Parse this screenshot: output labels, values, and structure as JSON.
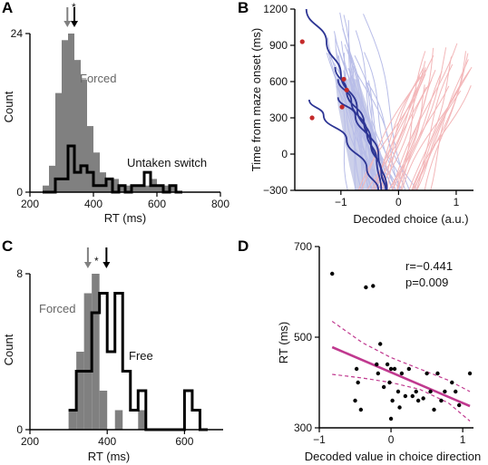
{
  "panels": {
    "A": {
      "letter": "A"
    },
    "B": {
      "letter": "B"
    },
    "C": {
      "letter": "C"
    },
    "D": {
      "letter": "D"
    }
  },
  "colors": {
    "forced_fill": "#808080",
    "switch_line": "#000000",
    "blue_traj": "#b8bde8",
    "pink_traj": "#f3b7b9",
    "dark_traj": "#2d3594",
    "marker": "#c42a2a",
    "band_fill": "#aab0dc",
    "fit_line": "#c0398f"
  },
  "chart_data": [
    {
      "id": "A",
      "type": "bar",
      "xlabel": "RT (ms)",
      "ylabel": "Count",
      "xlim": [
        200,
        800
      ],
      "ylim": [
        0,
        24
      ],
      "xticks": [
        "200",
        "400",
        "600",
        "800"
      ],
      "yticks": [
        "0",
        "24"
      ],
      "bin_width": 20,
      "arrow_marker": "*",
      "arrows": {
        "forced": 318,
        "switch": 340
      },
      "series": [
        {
          "name": "Forced",
          "kind": "filled",
          "bins": [
            240,
            260,
            280,
            300,
            320,
            340,
            360,
            380,
            400,
            420,
            440,
            460,
            480,
            500,
            520,
            540,
            560,
            580,
            600,
            620,
            640
          ],
          "counts": [
            1,
            4,
            15,
            23,
            24,
            20,
            17,
            10,
            6,
            3,
            2,
            2,
            1,
            1,
            1,
            1,
            1,
            2,
            1,
            1,
            1
          ]
        },
        {
          "name": "Untaken switch",
          "kind": "outline",
          "bins": [
            240,
            260,
            280,
            300,
            320,
            340,
            360,
            380,
            400,
            420,
            440,
            460,
            480,
            500,
            520,
            540,
            560,
            580,
            600,
            620,
            640,
            660
          ],
          "counts": [
            0,
            0,
            2,
            2,
            7,
            3,
            4,
            3,
            1,
            1,
            2,
            0,
            1,
            0,
            1,
            1,
            3,
            1,
            1,
            0,
            1,
            0
          ]
        }
      ]
    },
    {
      "id": "B",
      "type": "line",
      "xlabel": "Decoded choice (a.u.)",
      "ylabel": "Time from maze onset (ms)",
      "xlim": [
        -1.8,
        1.3
      ],
      "ylim": [
        -300,
        1200
      ],
      "xticks": [
        "−1",
        "0",
        "1"
      ],
      "yticks": [
        "−300",
        "0",
        "300",
        "600",
        "900",
        "1200"
      ],
      "highlighted_switch_trajectories": [
        {
          "points": [
            [
              -1.6,
              1200
            ],
            [
              -1.25,
              930
            ],
            [
              -1.0,
              660
            ],
            [
              -0.72,
              380
            ],
            [
              -0.48,
              110
            ],
            [
              -0.3,
              -160
            ],
            [
              -0.22,
              -300
            ]
          ],
          "marker": [
            -1.67,
            930
          ]
        },
        {
          "points": [
            [
              -1.1,
              720
            ],
            [
              -0.9,
              520
            ],
            [
              -0.6,
              260
            ],
            [
              -0.35,
              0
            ],
            [
              -0.2,
              -300
            ]
          ],
          "marker": [
            -0.95,
            620
          ]
        },
        {
          "points": [
            [
              -1.05,
              620
            ],
            [
              -0.82,
              440
            ],
            [
              -0.55,
              180
            ],
            [
              -0.38,
              -50
            ],
            [
              -0.3,
              -300
            ]
          ],
          "marker": [
            -0.9,
            530
          ]
        },
        {
          "points": [
            [
              -1.05,
              470
            ],
            [
              -0.75,
              320
            ],
            [
              -0.48,
              80
            ],
            [
              -0.3,
              -140
            ],
            [
              -0.22,
              -300
            ]
          ],
          "marker": [
            -0.98,
            390
          ]
        },
        {
          "points": [
            [
              -1.55,
              450
            ],
            [
              -1.3,
              320
            ],
            [
              -0.9,
              120
            ],
            [
              -0.55,
              -120
            ],
            [
              -0.35,
              -300
            ]
          ],
          "marker": [
            -1.5,
            300
          ]
        }
      ]
    },
    {
      "id": "C",
      "type": "bar",
      "xlabel": "RT (ms)",
      "ylabel": "Count",
      "xlim": [
        200,
        700
      ],
      "ylim": [
        0,
        8
      ],
      "xticks": [
        "200",
        "400",
        "600"
      ],
      "yticks": [
        "0",
        "8"
      ],
      "bin_width": 20,
      "arrow_marker": "*",
      "arrows": {
        "forced": 350,
        "free": 398
      },
      "series": [
        {
          "name": "Forced",
          "kind": "filled",
          "bins": [
            300,
            320,
            340,
            360,
            380,
            400,
            420,
            440,
            460,
            480,
            500
          ],
          "counts": [
            1,
            4,
            7,
            8,
            2,
            0,
            1,
            0,
            0,
            1,
            0
          ]
        },
        {
          "name": "Free",
          "kind": "outline",
          "bins": [
            300,
            320,
            340,
            360,
            380,
            400,
            420,
            440,
            460,
            480,
            500,
            520,
            540,
            560,
            580,
            600,
            620,
            640
          ],
          "counts": [
            1,
            3,
            3,
            6,
            7,
            4,
            7,
            3,
            1,
            2,
            0,
            0,
            0,
            0,
            0,
            2,
            1,
            0
          ]
        }
      ]
    },
    {
      "id": "D",
      "type": "scatter",
      "xlabel": "Decoded value in choice direction",
      "ylabel": "RT (ms)",
      "xlim": [
        -1.0,
        1.15
      ],
      "ylim": [
        300,
        700
      ],
      "xticks": [
        "−1",
        "0",
        "1"
      ],
      "yticks": [
        "300",
        "500",
        "700"
      ],
      "annotations": [
        "r=−0.441",
        "p=0.009"
      ],
      "points": [
        [
          -0.82,
          640
        ],
        [
          -0.35,
          610
        ],
        [
          -0.25,
          613
        ],
        [
          -0.48,
          430
        ],
        [
          -0.46,
          400
        ],
        [
          -0.5,
          360
        ],
        [
          -0.42,
          340
        ],
        [
          -0.2,
          440
        ],
        [
          -0.18,
          420
        ],
        [
          -0.15,
          485
        ],
        [
          -0.05,
          440
        ],
        [
          0.0,
          430
        ],
        [
          -0.02,
          400
        ],
        [
          0.02,
          360
        ],
        [
          0.05,
          430
        ],
        [
          0.1,
          380
        ],
        [
          0.12,
          345
        ],
        [
          0.2,
          370
        ],
        [
          0.25,
          430
        ],
        [
          0.3,
          370
        ],
        [
          0.35,
          380
        ],
        [
          0.38,
          360
        ],
        [
          0.45,
          365
        ],
        [
          0.5,
          420
        ],
        [
          0.55,
          380
        ],
        [
          0.6,
          340
        ],
        [
          0.65,
          420
        ],
        [
          0.7,
          360
        ],
        [
          0.75,
          380
        ],
        [
          0.85,
          400
        ],
        [
          0.9,
          380
        ],
        [
          0.95,
          350
        ],
        [
          1.1,
          420
        ],
        [
          -0.1,
          390
        ],
        [
          0.15,
          420
        ],
        [
          0.0,
          320
        ]
      ],
      "fit": {
        "x": [
          -0.82,
          1.1
        ],
        "y": [
          478,
          348
        ]
      },
      "ci_upper": {
        "x": [
          -0.82,
          -0.4,
          0.0,
          0.4,
          0.8,
          1.1
        ],
        "y": [
          535,
          488,
          455,
          430,
          405,
          380
        ]
      },
      "ci_lower": {
        "x": [
          -0.82,
          -0.4,
          0.0,
          0.4,
          0.8,
          1.1
        ],
        "y": [
          418,
          410,
          400,
          385,
          355,
          315
        ]
      }
    }
  ]
}
